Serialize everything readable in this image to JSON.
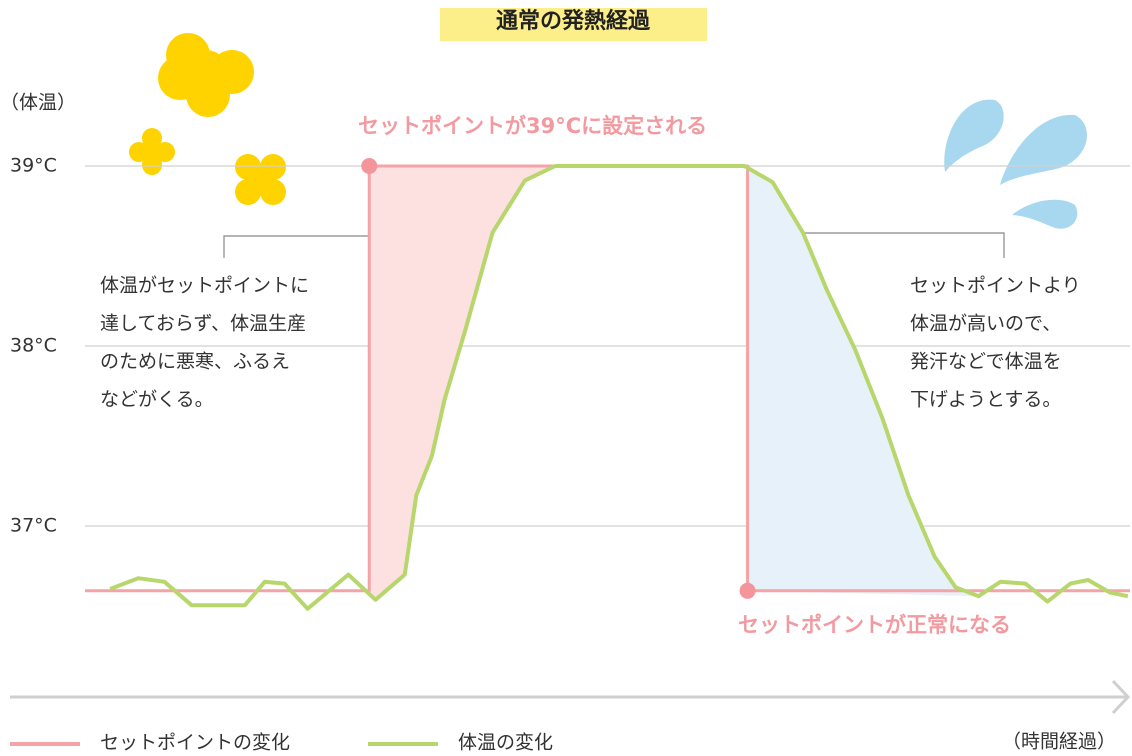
{
  "chart_data": {
    "type": "line",
    "title": "通常の発熱経過",
    "y_label": "（体温）",
    "x_label": "（時間経過）",
    "xlim": [
      0,
      100
    ],
    "ylim": [
      36.1,
      39.4
    ],
    "yticks": [
      {
        "value": 37,
        "label": "37°C"
      },
      {
        "value": 38,
        "label": "38°C"
      },
      {
        "value": 39,
        "label": "39°C"
      }
    ],
    "grid": true,
    "legend": "bottom-left",
    "series": [
      {
        "name": "セットポイントの変化",
        "color": "#f4a3a6",
        "x": [
          0,
          27.2,
          27.2,
          63.4,
          63.4,
          100
        ],
        "values": [
          36.64,
          36.64,
          39,
          39,
          36.64,
          36.64
        ]
      },
      {
        "name": "体温の変化",
        "color": "#b7d66b",
        "x": [
          2.4,
          5.1,
          7.6,
          10.2,
          15.3,
          17.2,
          19.1,
          21.3,
          25.2,
          27.8,
          30.6,
          31.7,
          33.2,
          34.4,
          36.4,
          39.0,
          42.1,
          45.0,
          63.1,
          65.8,
          68.7,
          71.0,
          73.7,
          76.3,
          78.8,
          81.3,
          83.3,
          85.5,
          87.6,
          90.0,
          92.1,
          94.3,
          96.0,
          98.1,
          99.8
        ],
        "values": [
          36.65,
          36.71,
          36.69,
          36.56,
          36.56,
          36.69,
          36.68,
          36.54,
          36.73,
          36.59,
          36.73,
          37.17,
          37.39,
          37.7,
          38.09,
          38.63,
          38.92,
          39.0,
          39.0,
          38.91,
          38.63,
          38.31,
          37.98,
          37.6,
          37.17,
          36.83,
          36.66,
          36.61,
          36.69,
          36.68,
          36.58,
          36.68,
          36.7,
          36.63,
          36.61
        ]
      }
    ],
    "annotations": {
      "rise": "セットポイントが39°Cに設定される",
      "normal": "セットポイントが正常になる",
      "left": [
        "体温がセットポイントに",
        "達しておらず、体温生産",
        "のために悪寒、ふるえ",
        "などがくる。"
      ],
      "right": [
        "セットポイントより",
        "体温が高いので、",
        "発汗などで体温を",
        "下げようとする。"
      ]
    }
  }
}
